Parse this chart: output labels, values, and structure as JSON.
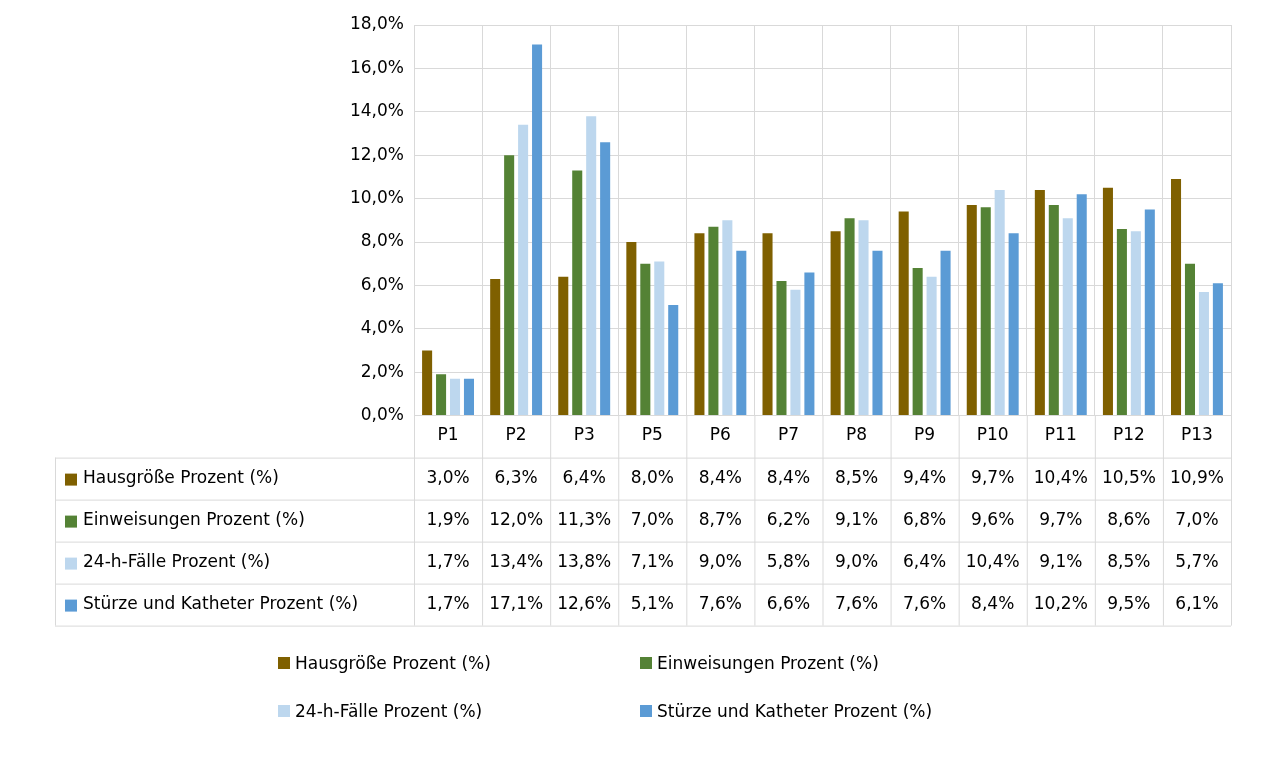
{
  "chart_data": {
    "type": "bar",
    "categories": [
      "P1",
      "P2",
      "P3",
      "P5",
      "P6",
      "P7",
      "P8",
      "P9",
      "P10",
      "P11",
      "P12",
      "P13"
    ],
    "series": [
      {
        "name": "Hausgröße Prozent (%)",
        "color": "#7f6000",
        "values": [
          3.0,
          6.3,
          6.4,
          8.0,
          8.4,
          8.4,
          8.5,
          9.4,
          9.7,
          10.4,
          10.5,
          10.9
        ],
        "value_labels": [
          "3,0%",
          "6,3%",
          "6,4%",
          "8,0%",
          "8,4%",
          "8,4%",
          "8,5%",
          "9,4%",
          "9,7%",
          "10,4%",
          "10,5%",
          "10,9%"
        ]
      },
      {
        "name": "Einweisungen Prozent (%)",
        "color": "#548235",
        "values": [
          1.9,
          12.0,
          11.3,
          7.0,
          8.7,
          6.2,
          9.1,
          6.8,
          9.6,
          9.7,
          8.6,
          7.0
        ],
        "value_labels": [
          "1,9%",
          "12,0%",
          "11,3%",
          "7,0%",
          "8,7%",
          "6,2%",
          "9,1%",
          "6,8%",
          "9,6%",
          "9,7%",
          "8,6%",
          "7,0%"
        ]
      },
      {
        "name": "24-h-Fälle Prozent (%)",
        "color": "#bdd7ee",
        "values": [
          1.7,
          13.4,
          13.8,
          7.1,
          9.0,
          5.8,
          9.0,
          6.4,
          10.4,
          9.1,
          8.5,
          5.7
        ],
        "value_labels": [
          "1,7%",
          "13,4%",
          "13,8%",
          "7,1%",
          "9,0%",
          "5,8%",
          "9,0%",
          "6,4%",
          "10,4%",
          "9,1%",
          "8,5%",
          "5,7%"
        ]
      },
      {
        "name": "Stürze und Katheter Prozent (%)",
        "color": "#5b9bd5",
        "values": [
          1.7,
          17.1,
          12.6,
          5.1,
          7.6,
          6.6,
          7.6,
          7.6,
          8.4,
          10.2,
          9.5,
          6.1
        ],
        "value_labels": [
          "1,7%",
          "17,1%",
          "12,6%",
          "5,1%",
          "7,6%",
          "6,6%",
          "7,6%",
          "7,6%",
          "8,4%",
          "10,2%",
          "9,5%",
          "6,1%"
        ]
      }
    ],
    "ylim": [
      0,
      18
    ],
    "yticks": [
      {
        "value": 0,
        "label": "0,0%"
      },
      {
        "value": 2,
        "label": "2,0%"
      },
      {
        "value": 4,
        "label": "4,0%"
      },
      {
        "value": 6,
        "label": "6,0%"
      },
      {
        "value": 8,
        "label": "8,0%"
      },
      {
        "value": 10,
        "label": "10,0%"
      },
      {
        "value": 12,
        "label": "12,0%"
      },
      {
        "value": 14,
        "label": "14,0%"
      },
      {
        "value": 16,
        "label": "16,0%"
      },
      {
        "value": 18,
        "label": "18,0%"
      }
    ],
    "grid": true,
    "legend": "bottom"
  }
}
